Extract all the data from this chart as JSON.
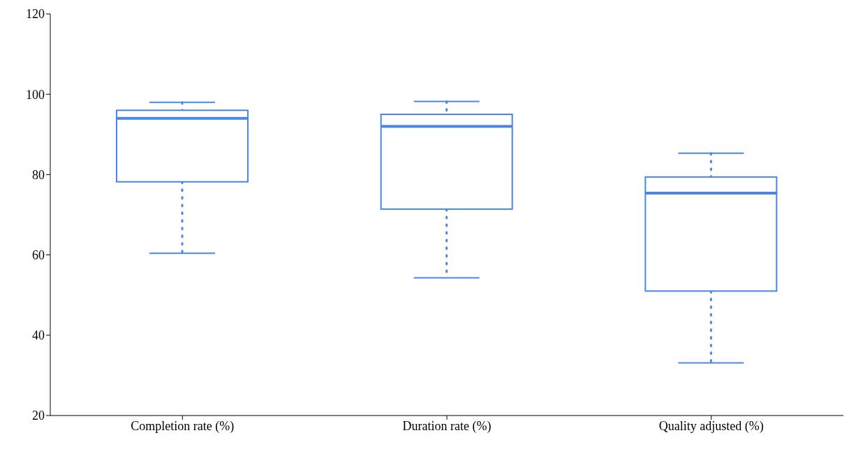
{
  "chart_data": {
    "type": "box",
    "categories": [
      "Completion  rate (%)",
      "Duration  rate (%)",
      "Quality  adjusted (%)"
    ],
    "color": "#4a86e8",
    "line_style": "dotted",
    "grid": false,
    "legend": false,
    "boxes": [
      {
        "low": 60.4,
        "q1": 78.2,
        "median": 94,
        "q3": 96,
        "high": 98
      },
      {
        "low": 54.3,
        "q1": 71.4,
        "median": 92,
        "q3": 95,
        "high": 98.2
      },
      {
        "low": 33.1,
        "q1": 51,
        "median": 75.4,
        "q3": 79.4,
        "high": 85.3
      }
    ],
    "ylim": [
      20,
      120
    ],
    "yticks": [
      20,
      40,
      60,
      80,
      100,
      120
    ]
  }
}
